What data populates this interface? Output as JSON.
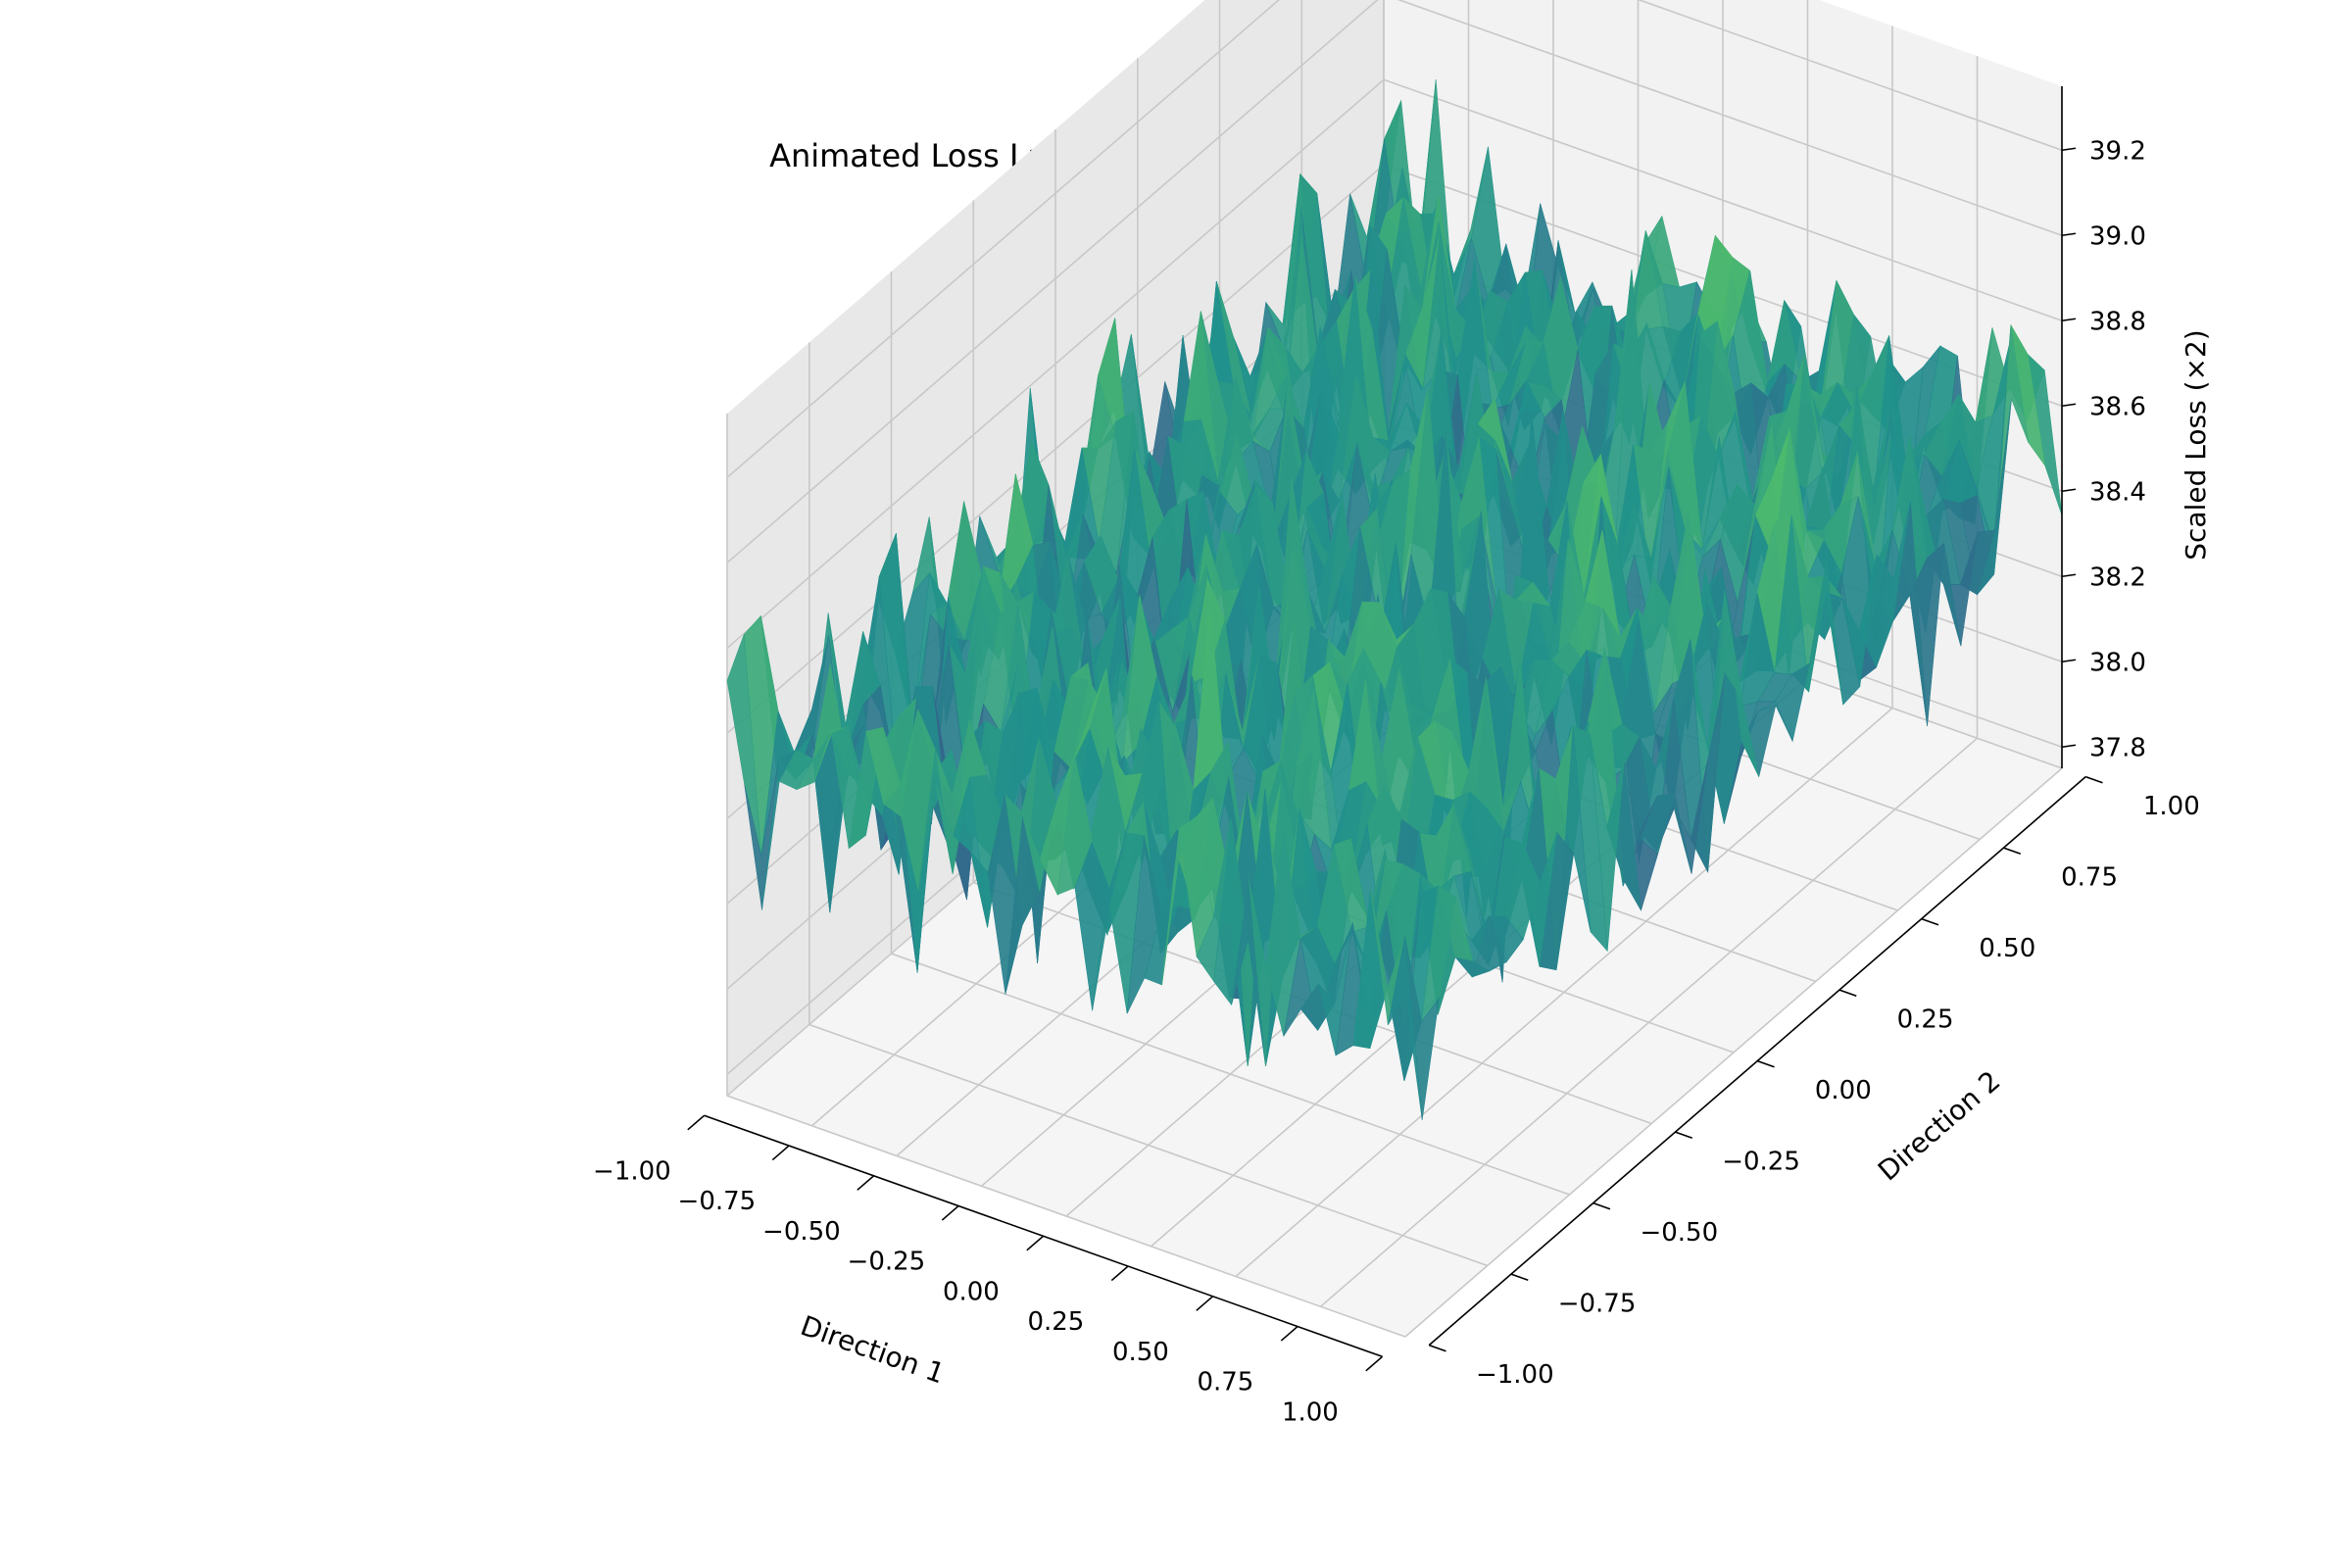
{
  "chart_data": {
    "type": "surface3d",
    "title": "Animated Loss Landscape with Optimizer Trajectory",
    "xlabel": "Direction 1",
    "ylabel": "Direction 2",
    "zlabel": "Scaled Loss (×2)",
    "xlim": [
      -1.0,
      1.0
    ],
    "ylim": [
      -1.0,
      1.0
    ],
    "zlim": [
      37.75,
      39.35
    ],
    "x_ticks": [
      "−1.00",
      "−0.75",
      "−0.50",
      "−0.25",
      "0.00",
      "0.25",
      "0.50",
      "0.75",
      "1.00"
    ],
    "y_ticks": [
      "−1.00",
      "−0.75",
      "−0.50",
      "−0.25",
      "0.00",
      "0.25",
      "0.50",
      "0.75",
      "1.00"
    ],
    "z_ticks": [
      "37.8",
      "38.0",
      "38.2",
      "38.4",
      "38.6",
      "38.8",
      "39.0",
      "39.2"
    ],
    "x_tick_values": [
      -1.0,
      -0.75,
      -0.5,
      -0.25,
      0.0,
      0.25,
      0.5,
      0.75,
      1.0
    ],
    "y_tick_values": [
      -1.0,
      -0.75,
      -0.5,
      -0.25,
      0.0,
      0.25,
      0.5,
      0.75,
      1.0
    ],
    "z_tick_values": [
      37.8,
      38.0,
      38.2,
      38.4,
      38.6,
      38.8,
      39.0,
      39.2
    ],
    "grid": true,
    "colormap": "viridis",
    "surface": {
      "x_range": [
        -1.0,
        1.0
      ],
      "y_range": [
        -1.0,
        1.0
      ],
      "samples": 40,
      "z_mean": 38.5,
      "z_min_observed": 37.75,
      "z_max_observed": 39.3,
      "character": "noisy random surface"
    },
    "colors": {
      "pane": "#f2f2f2",
      "pane_side": "#e8e8e8",
      "grid": "#c8c8c8",
      "viridis": [
        "#440154",
        "#3b528b",
        "#21918c",
        "#5ec962",
        "#fde725"
      ]
    }
  }
}
